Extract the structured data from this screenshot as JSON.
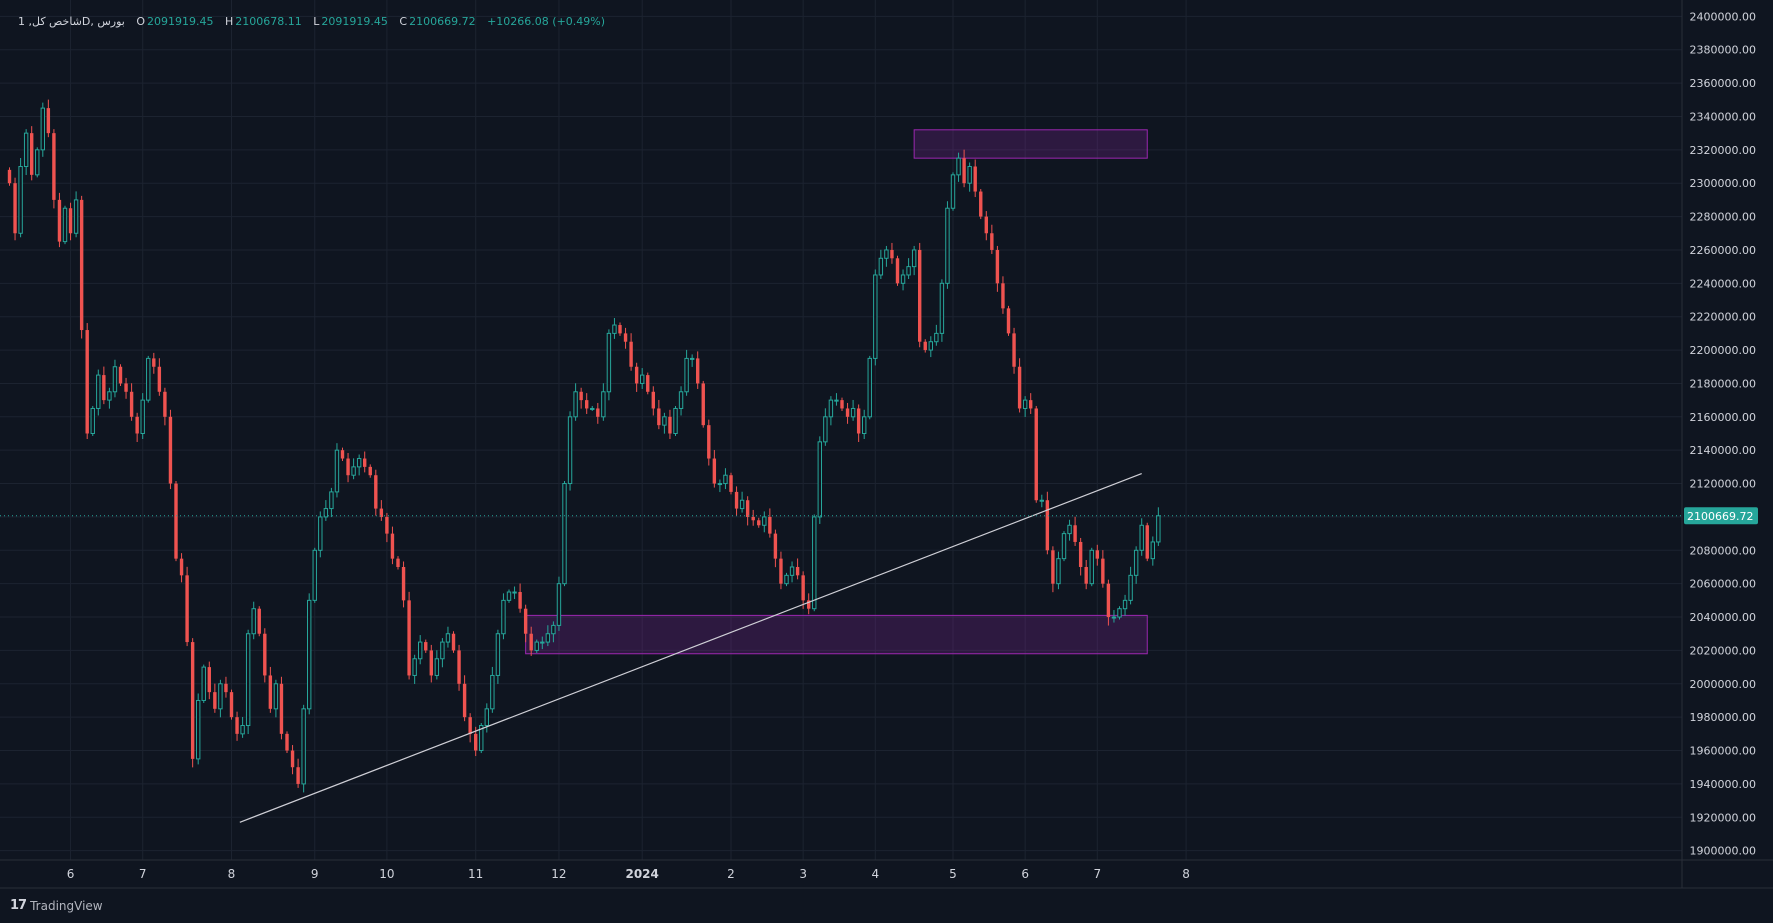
{
  "legend": {
    "title": "شاخص کل, 1D, بورس",
    "open_label": "O",
    "open_value": "2091919.45",
    "high_label": "H",
    "high_value": "2100678.11",
    "low_label": "L",
    "low_value": "2091919.45",
    "close_label": "C",
    "close_value": "2100669.72",
    "change": "+10266.08 (+0.49%)"
  },
  "footer": {
    "brand": "TradingView",
    "logo_glyph": "17"
  },
  "colors": {
    "background": "#0f1520",
    "up": "#26a69a",
    "down": "#ef5350",
    "zone": "#9c27b0",
    "trendline": "#cfcfd6",
    "grid": "#1c2330"
  },
  "chart_data": {
    "type": "candlestick",
    "title": "شاخص کل",
    "ylim": [
      1895000,
      2402000
    ],
    "y_ticks": [
      "2400000.00",
      "2380000.00",
      "2360000.00",
      "2340000.00",
      "2320000.00",
      "2300000.00",
      "2280000.00",
      "2260000.00",
      "2240000.00",
      "2220000.00",
      "2200000.00",
      "2180000.00",
      "2160000.00",
      "2140000.00",
      "2120000.00",
      "2100000.00",
      "2080000.00",
      "2060000.00",
      "2040000.00",
      "2020000.00",
      "2000000.00",
      "1980000.00",
      "1960000.00",
      "1940000.00",
      "1920000.00",
      "1900000.00"
    ],
    "x_ticks": [
      {
        "label": "6",
        "i": 11
      },
      {
        "label": "7",
        "i": 24
      },
      {
        "label": "8",
        "i": 40
      },
      {
        "label": "9",
        "i": 55
      },
      {
        "label": "10",
        "i": 68
      },
      {
        "label": "11",
        "i": 84
      },
      {
        "label": "12",
        "i": 99
      },
      {
        "label": "2024",
        "i": 114
      },
      {
        "label": "2",
        "i": 130
      },
      {
        "label": "3",
        "i": 143
      },
      {
        "label": "4",
        "i": 156
      },
      {
        "label": "5",
        "i": 170
      },
      {
        "label": "6",
        "i": 183
      },
      {
        "label": "7",
        "i": 196
      },
      {
        "label": "8",
        "i": 212
      }
    ],
    "last_price": 2100669.72,
    "last_price_label": "2100669.72",
    "zones": [
      {
        "i_start": 163,
        "i_end": 205,
        "low": 2315000,
        "high": 2332000
      },
      {
        "i_start": 93,
        "i_end": 205,
        "low": 2018000,
        "high": 2041000
      }
    ],
    "trendline": {
      "i1": 41.5,
      "v1": 1917000,
      "i2": 204,
      "v2": 2126000
    },
    "closes": [
      2300000,
      2270000,
      2310000,
      2330000,
      2305000,
      2320000,
      2345000,
      2330000,
      2290000,
      2265000,
      2285000,
      2270000,
      2290000,
      2212000,
      2150000,
      2165000,
      2185000,
      2170000,
      2175000,
      2190000,
      2180000,
      2175000,
      2160000,
      2150000,
      2170000,
      2195000,
      2190000,
      2175000,
      2160000,
      2120000,
      2075000,
      2065000,
      2025000,
      1955000,
      1990000,
      2010000,
      1995000,
      1985000,
      2000000,
      1995000,
      1980000,
      1970000,
      1975000,
      2030000,
      2045000,
      2030000,
      2005000,
      1985000,
      2000000,
      1970000,
      1960000,
      1950000,
      1940000,
      1985000,
      2050000,
      2080000,
      2100000,
      2105000,
      2115000,
      2140000,
      2135000,
      2125000,
      2130000,
      2135000,
      2130000,
      2125000,
      2105000,
      2100000,
      2090000,
      2075000,
      2070000,
      2050000,
      2005000,
      2015000,
      2025000,
      2020000,
      2005000,
      2015000,
      2025000,
      2030000,
      2020000,
      2000000,
      1980000,
      1970000,
      1960000,
      1975000,
      1985000,
      2005000,
      2030000,
      2050000,
      2055000,
      2055000,
      2045000,
      2030000,
      2020000,
      2025000,
      2025000,
      2030000,
      2035000,
      2060000,
      2120000,
      2160000,
      2175000,
      2170000,
      2165000,
      2165000,
      2160000,
      2175000,
      2210000,
      2215000,
      2210000,
      2205000,
      2190000,
      2180000,
      2185000,
      2175000,
      2165000,
      2155000,
      2160000,
      2150000,
      2165000,
      2175000,
      2195000,
      2195000,
      2180000,
      2155000,
      2135000,
      2120000,
      2120000,
      2125000,
      2115000,
      2105000,
      2110000,
      2100000,
      2098000,
      2095000,
      2100000,
      2090000,
      2075000,
      2060000,
      2065000,
      2070000,
      2065000,
      2050000,
      2045000,
      2100000,
      2145000,
      2160000,
      2170000,
      2170000,
      2165000,
      2160000,
      2165000,
      2150000,
      2160000,
      2195000,
      2245000,
      2255000,
      2260000,
      2255000,
      2240000,
      2245000,
      2250000,
      2260000,
      2205000,
      2200000,
      2205000,
      2210000,
      2240000,
      2285000,
      2305000,
      2315000,
      2300000,
      2310000,
      2295000,
      2280000,
      2270000,
      2260000,
      2240000,
      2225000,
      2210000,
      2190000,
      2165000,
      2170000,
      2165000,
      2110000,
      2110000,
      2080000,
      2060000,
      2075000,
      2090000,
      2095000,
      2085000,
      2070000,
      2060000,
      2080000,
      2075000,
      2060000,
      2040000,
      2040000,
      2045000,
      2050000,
      2065000,
      2080000,
      2095000,
      2075000,
      2085000,
      2100670
    ]
  }
}
